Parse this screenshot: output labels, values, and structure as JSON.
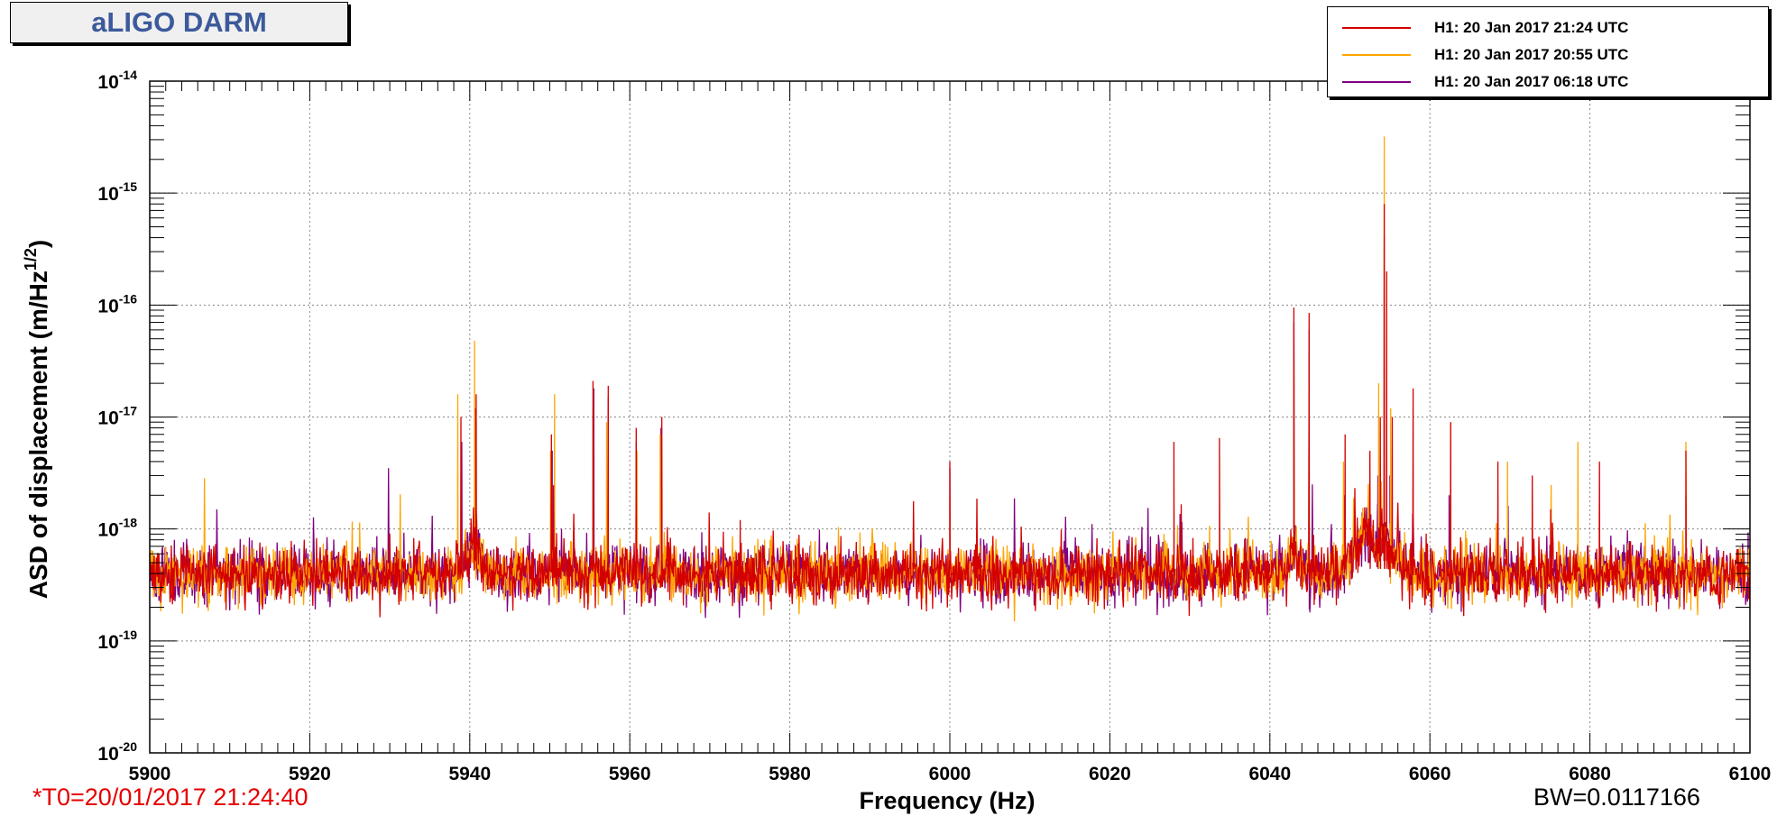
{
  "title": "aLIGO DARM",
  "footer": {
    "t0": "*T0=20/01/2017 21:24:40",
    "bw": "BW=0.0117166"
  },
  "legend": [
    {
      "label": "H1: 20 Jan 2017 21:24 UTC",
      "color": "#d40000"
    },
    {
      "label": "H1: 20 Jan 2017 20:55 UTC",
      "color": "#ffa500"
    },
    {
      "label": "H1: 20 Jan 2017 06:18 UTC",
      "color": "#800080"
    }
  ],
  "chart_data": {
    "type": "line",
    "xlabel": "Frequency (Hz)",
    "ylabel": "ASD of displacement (m/Hz^1/2)",
    "xlim": [
      5900,
      6100
    ],
    "ylim": [
      1e-20,
      1e-14
    ],
    "yscale": "log",
    "grid": true,
    "legend_position": "top-right",
    "x_ticks": [
      5900,
      5920,
      5940,
      5960,
      5980,
      6000,
      6020,
      6040,
      6060,
      6080,
      6100
    ],
    "y_ticks": [
      {
        "value": 1e-20,
        "mant": "10",
        "exp": "-20"
      },
      {
        "value": 1e-19,
        "mant": "10",
        "exp": "-19"
      },
      {
        "value": 1e-18,
        "mant": "10",
        "exp": "-18"
      },
      {
        "value": 1e-17,
        "mant": "10",
        "exp": "-17"
      },
      {
        "value": 1e-16,
        "mant": "10",
        "exp": "-16"
      },
      {
        "value": 1e-15,
        "mant": "10",
        "exp": "-15"
      },
      {
        "value": 1e-14,
        "mant": "10",
        "exp": "-14"
      }
    ],
    "noise_floor": 4e-19,
    "series": [
      {
        "name": "H1: 20 Jan 2017 06:18 UTC",
        "color": "#800080",
        "peaks": [
          [
            5939.0,
            6e-18
          ],
          [
            5940.7,
            1.2e-17
          ],
          [
            5950.3,
            5e-18
          ],
          [
            5955.5,
            1.8e-17
          ],
          [
            5957.3,
            1.5e-17
          ],
          [
            5960.8,
            6e-18
          ],
          [
            5963.9,
            8e-18
          ],
          [
            6000.0,
            3.5e-18
          ],
          [
            6043.0,
            7e-17
          ],
          [
            6044.9,
            6e-17
          ],
          [
            6049.3,
            2e-18
          ],
          [
            6053.5,
            3e-18
          ],
          [
            6054.3,
            4e-16
          ],
          [
            6055.0,
            3e-18
          ],
          [
            6062.4,
            2e-18
          ],
          [
            6092.0,
            2e-18
          ]
        ]
      },
      {
        "name": "H1: 20 Jan 2017 20:55 UTC",
        "color": "#ffa500",
        "peaks": [
          [
            5938.5,
            1.6e-17
          ],
          [
            5940.6,
            4.8e-17
          ],
          [
            5950.1,
            5e-18
          ],
          [
            5950.6,
            1.6e-17
          ],
          [
            5955.4,
            1.2e-17
          ],
          [
            5957.1,
            9e-18
          ],
          [
            5960.9,
            5e-18
          ],
          [
            5963.8,
            7e-18
          ],
          [
            6000.0,
            2e-18
          ],
          [
            6043.0,
            3e-17
          ],
          [
            6044.9,
            2e-17
          ],
          [
            6049.2,
            4e-18
          ],
          [
            6053.6,
            2e-17
          ],
          [
            6054.3,
            3.2e-15
          ],
          [
            6055.1,
            1.2e-17
          ],
          [
            6062.6,
            9e-18
          ],
          [
            6069.7,
            4e-18
          ],
          [
            6078.5,
            6e-18
          ],
          [
            6092.0,
            6e-18
          ]
        ]
      },
      {
        "name": "H1: 20 Jan 2017 21:24 UTC",
        "color": "#d40000",
        "peaks": [
          [
            5938.9,
            1e-17
          ],
          [
            5940.8,
            1.6e-17
          ],
          [
            5950.2,
            7e-18
          ],
          [
            5955.4,
            2.1e-17
          ],
          [
            5957.3,
            1.9e-17
          ],
          [
            5960.8,
            8e-18
          ],
          [
            5964.0,
            1e-17
          ],
          [
            5973.8,
            1.2e-18
          ],
          [
            6000.0,
            4e-18
          ],
          [
            6028.0,
            6e-18
          ],
          [
            6033.7,
            6.5e-18
          ],
          [
            6043.0,
            9.5e-17
          ],
          [
            6044.9,
            8.5e-17
          ],
          [
            6049.4,
            7e-18
          ],
          [
            6052.5,
            5e-18
          ],
          [
            6053.8,
            1e-17
          ],
          [
            6054.3,
            8e-16
          ],
          [
            6054.6,
            2e-16
          ],
          [
            6055.3,
            1e-17
          ],
          [
            6057.9,
            1.8e-17
          ],
          [
            6062.6,
            9e-18
          ],
          [
            6068.5,
            4e-18
          ],
          [
            6072.8,
            3e-18
          ],
          [
            6075.1,
            1.5e-18
          ],
          [
            6081.2,
            4e-18
          ],
          [
            6092.0,
            5e-18
          ]
        ]
      }
    ]
  }
}
